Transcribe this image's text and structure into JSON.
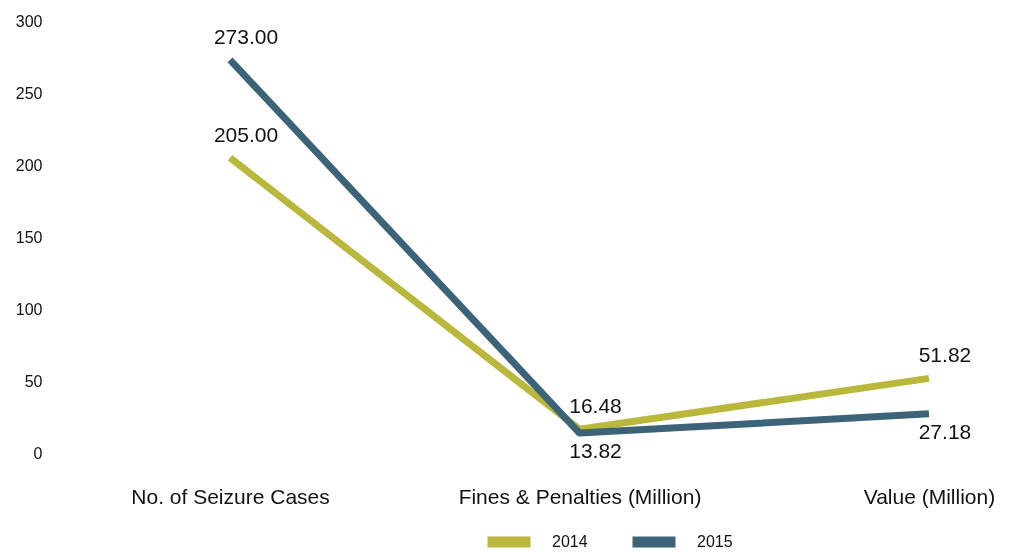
{
  "chart_data": {
    "type": "line",
    "categories": [
      "No. of Seizure Cases",
      "Fines & Penalties (Million)",
      "Value (Million)"
    ],
    "series": [
      {
        "name": "2014",
        "color": "#bab83c",
        "values": [
          205,
          16.48,
          51.82
        ],
        "value_labels": [
          "205.00",
          "16.48",
          "51.82"
        ]
      },
      {
        "name": "2015",
        "color": "#3d6378",
        "values": [
          273,
          13.82,
          27.18
        ],
        "value_labels": [
          "273.00",
          "13.82",
          "27.18"
        ]
      }
    ],
    "ylim": [
      0,
      300
    ],
    "yticks": [
      0,
      50,
      100,
      150,
      200,
      250,
      300
    ],
    "legend": "bottom"
  }
}
